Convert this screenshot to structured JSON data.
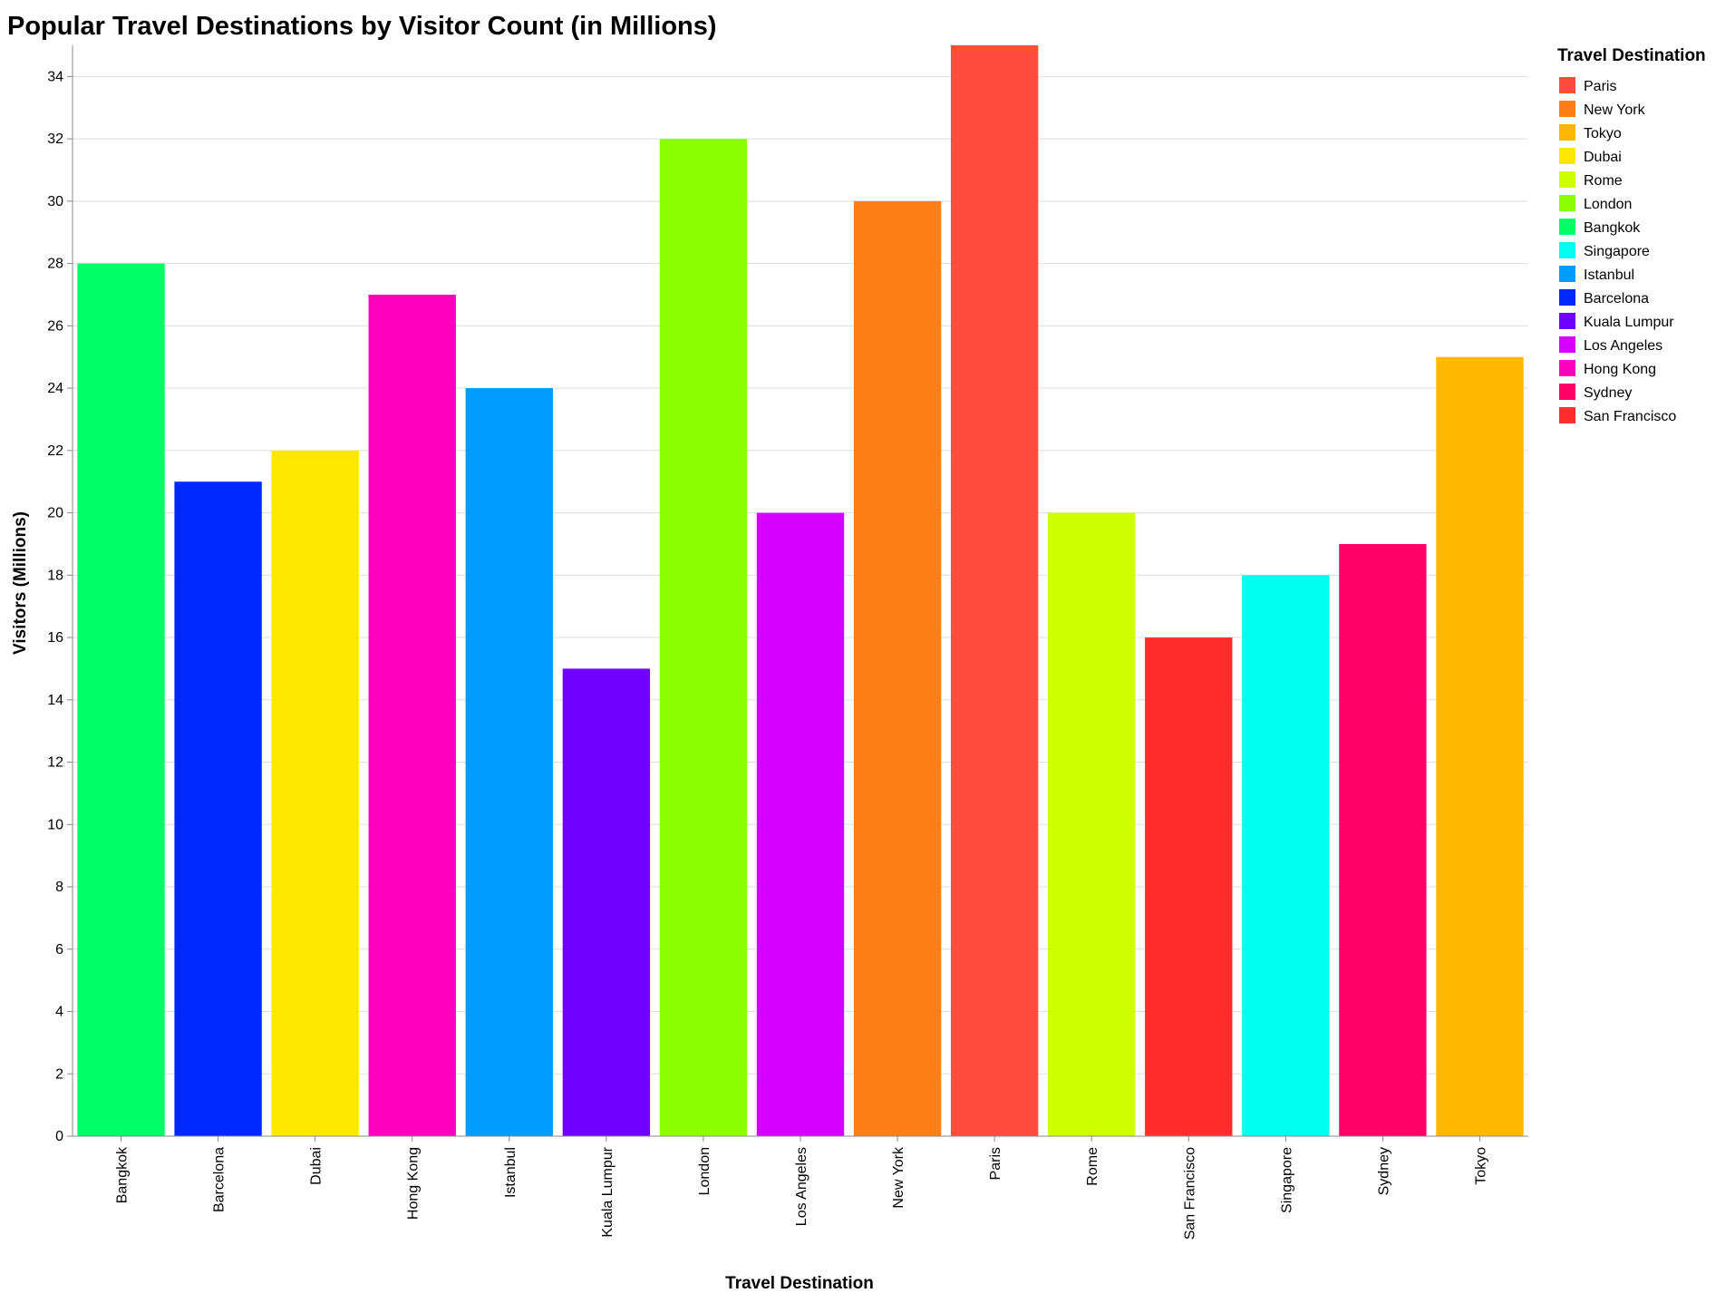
{
  "chart_data": {
    "type": "bar",
    "title": "Popular Travel Destinations by Visitor Count (in Millions)",
    "xlabel": "Travel Destination",
    "ylabel": "Visitors (Millions)",
    "ylim": [
      0,
      35
    ],
    "yticks": [
      0,
      2,
      4,
      6,
      8,
      10,
      12,
      14,
      16,
      18,
      20,
      22,
      24,
      26,
      28,
      30,
      32,
      34
    ],
    "grid": true,
    "legend_title": "Travel Destination",
    "legend_position": "right",
    "categories": [
      "Bangkok",
      "Barcelona",
      "Dubai",
      "Hong Kong",
      "Istanbul",
      "Kuala Lumpur",
      "London",
      "Los Angeles",
      "New York",
      "Paris",
      "Rome",
      "San Francisco",
      "Singapore",
      "Sydney",
      "Tokyo"
    ],
    "values": [
      28,
      21,
      22,
      27,
      24,
      15,
      32,
      20,
      30,
      35,
      20,
      16,
      18,
      19,
      25
    ],
    "legend": [
      {
        "name": "Paris",
        "color": "#ff4c3f"
      },
      {
        "name": "New York",
        "color": "#ff7f17"
      },
      {
        "name": "Tokyo",
        "color": "#ffb700"
      },
      {
        "name": "Dubai",
        "color": "#ffe800"
      },
      {
        "name": "Rome",
        "color": "#d0ff00"
      },
      {
        "name": "London",
        "color": "#8cff00"
      },
      {
        "name": "Bangkok",
        "color": "#00ff66"
      },
      {
        "name": "Singapore",
        "color": "#00fff0"
      },
      {
        "name": "Istanbul",
        "color": "#009dff"
      },
      {
        "name": "Barcelona",
        "color": "#0028ff"
      },
      {
        "name": "Kuala Lumpur",
        "color": "#7000ff"
      },
      {
        "name": "Los Angeles",
        "color": "#d600ff"
      },
      {
        "name": "Hong Kong",
        "color": "#ff00bc"
      },
      {
        "name": "Sydney",
        "color": "#ff0066"
      },
      {
        "name": "San Francisco",
        "color": "#ff2d2d"
      }
    ]
  }
}
